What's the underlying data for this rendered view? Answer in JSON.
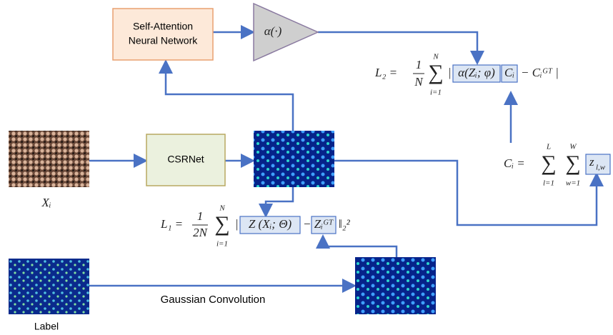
{
  "nodes": {
    "self_attention": [
      "Self-Attention",
      "Neural Network"
    ],
    "alpha": "α(·)",
    "csrnet": "CSRNet",
    "input_label": "Xᵢ",
    "gaussian": "Gaussian Convolution",
    "label": "Label"
  },
  "formulas": {
    "l2": {
      "lhs": "L₂ =",
      "frac_num": "1",
      "frac_den": "N",
      "sum": "∑",
      "sum_lower": "i=1",
      "sum_upper": "N",
      "abs_open": "|",
      "term1": "α(Zᵢ; φ)",
      "term2": "Cᵢ",
      "rest": "− Cᵢᴳᵀ |"
    },
    "ci": {
      "lhs": "Cᵢ =",
      "sum1": "∑",
      "sum1_lower": "l=1",
      "sum1_upper": "L",
      "sum2": "∑",
      "sum2_lower": "w=1",
      "sum2_upper": "W",
      "term": "z",
      "term_sub": "l,w"
    },
    "l1": {
      "lhs": "L₁ =",
      "frac_num": "1",
      "frac_den": "2N",
      "sum": "∑",
      "sum_lower": "i=1",
      "sum_upper": "N",
      "abs_open": "|",
      "term1": "Z (Xᵢ; Θ)",
      "minus": "−",
      "term2": "Zᵢᴳᵀ",
      "norm": "‖₂²"
    }
  }
}
